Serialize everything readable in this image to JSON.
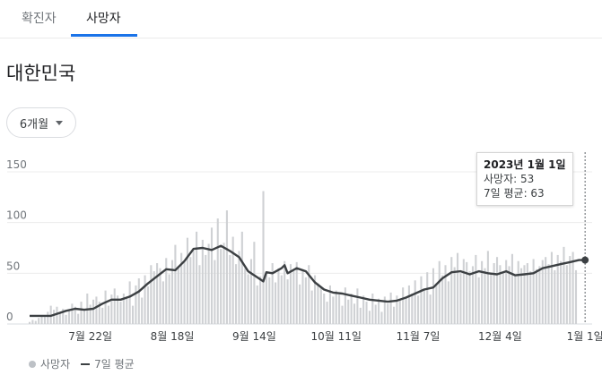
{
  "tabs": [
    {
      "label": "확진자",
      "active": false
    },
    {
      "label": "사망자",
      "active": true
    }
  ],
  "region_title": "대한민국",
  "range_selector": {
    "label": "6개월"
  },
  "tooltip": {
    "date": "2023년 1월 1일",
    "deaths_text": "사망자: 53",
    "avg_text": "7일 평균: 63"
  },
  "legend": {
    "bars_label": "사망자",
    "line_label": "7일 평균"
  },
  "colors": {
    "bar": "#cfd1d4",
    "line": "#3c4043",
    "accent": "#1a73e8",
    "grid": "#ececec"
  },
  "chart_data": {
    "type": "bar",
    "ylim": [
      0,
      150
    ],
    "yticks": [
      "150",
      "100",
      "50",
      "0"
    ],
    "ytick_values": [
      150,
      100,
      50,
      0
    ],
    "xticks": [
      "7월 22일",
      "8월 18일",
      "9월 14일",
      "10월 11일",
      "11월 7일",
      "12월 4일",
      "1월 1일"
    ],
    "xtick_days": [
      20,
      47,
      74,
      101,
      128,
      155,
      183
    ],
    "start_date": "2022-07-02",
    "daily_deaths": [
      2,
      4,
      3,
      6,
      8,
      7,
      12,
      18,
      14,
      17,
      11,
      15,
      9,
      13,
      20,
      17,
      10,
      22,
      14,
      30,
      19,
      24,
      27,
      22,
      16,
      33,
      18,
      29,
      35,
      28,
      22,
      30,
      25,
      42,
      18,
      38,
      45,
      26,
      48,
      37,
      58,
      52,
      60,
      55,
      42,
      65,
      49,
      63,
      78,
      57,
      70,
      61,
      85,
      66,
      72,
      91,
      58,
      83,
      68,
      79,
      95,
      63,
      104,
      74,
      80,
      112,
      68,
      86,
      59,
      72,
      91,
      55,
      49,
      64,
      81,
      38,
      47,
      131,
      52,
      46,
      60,
      41,
      55,
      48,
      62,
      44,
      59,
      52,
      61,
      39,
      54,
      46,
      58,
      33,
      48,
      40,
      36,
      30,
      22,
      38,
      27,
      33,
      29,
      18,
      36,
      24,
      30,
      20,
      35,
      16,
      28,
      22,
      13,
      30,
      19,
      25,
      12,
      27,
      20,
      31,
      17,
      28,
      24,
      36,
      26,
      38,
      30,
      43,
      28,
      47,
      35,
      51,
      29,
      55,
      40,
      62,
      48,
      58,
      42,
      66,
      56,
      70,
      50,
      64,
      61,
      52,
      57,
      68,
      46,
      62,
      55,
      72,
      49,
      60,
      66,
      58,
      51,
      63,
      57,
      69,
      48,
      62,
      55,
      58,
      60,
      52,
      64,
      54,
      57,
      63,
      66,
      59,
      71,
      53,
      68,
      62,
      76,
      58,
      67,
      71,
      53
    ],
    "series": [
      {
        "name": "7일 평균",
        "points": [
          [
            0,
            8
          ],
          [
            7,
            8
          ],
          [
            12,
            13
          ],
          [
            15,
            15
          ],
          [
            18,
            14
          ],
          [
            21,
            15
          ],
          [
            24,
            20
          ],
          [
            27,
            24
          ],
          [
            30,
            24
          ],
          [
            33,
            27
          ],
          [
            36,
            32
          ],
          [
            39,
            40
          ],
          [
            42,
            47
          ],
          [
            45,
            54
          ],
          [
            48,
            53
          ],
          [
            51,
            62
          ],
          [
            54,
            74
          ],
          [
            57,
            75
          ],
          [
            60,
            73
          ],
          [
            63,
            77
          ],
          [
            66,
            72
          ],
          [
            69,
            66
          ],
          [
            72,
            52
          ],
          [
            75,
            46
          ],
          [
            77,
            42
          ],
          [
            78,
            51
          ],
          [
            80,
            50
          ],
          [
            83,
            55
          ],
          [
            84,
            58
          ],
          [
            85,
            50
          ],
          [
            88,
            55
          ],
          [
            91,
            52
          ],
          [
            94,
            41
          ],
          [
            97,
            34
          ],
          [
            100,
            31
          ],
          [
            103,
            30
          ],
          [
            106,
            28
          ],
          [
            109,
            26
          ],
          [
            112,
            24
          ],
          [
            115,
            23
          ],
          [
            118,
            22
          ],
          [
            121,
            23
          ],
          [
            124,
            26
          ],
          [
            127,
            30
          ],
          [
            130,
            34
          ],
          [
            133,
            36
          ],
          [
            136,
            45
          ],
          [
            139,
            51
          ],
          [
            142,
            52
          ],
          [
            145,
            49
          ],
          [
            148,
            52
          ],
          [
            151,
            50
          ],
          [
            154,
            49
          ],
          [
            157,
            52
          ],
          [
            160,
            48
          ],
          [
            163,
            49
          ],
          [
            166,
            50
          ],
          [
            169,
            55
          ],
          [
            172,
            57
          ],
          [
            175,
            59
          ],
          [
            178,
            61
          ],
          [
            181,
            63
          ],
          [
            183,
            63
          ]
        ]
      }
    ],
    "highlight": {
      "date": "2023-01-01",
      "deaths": 53,
      "avg": 63
    }
  }
}
